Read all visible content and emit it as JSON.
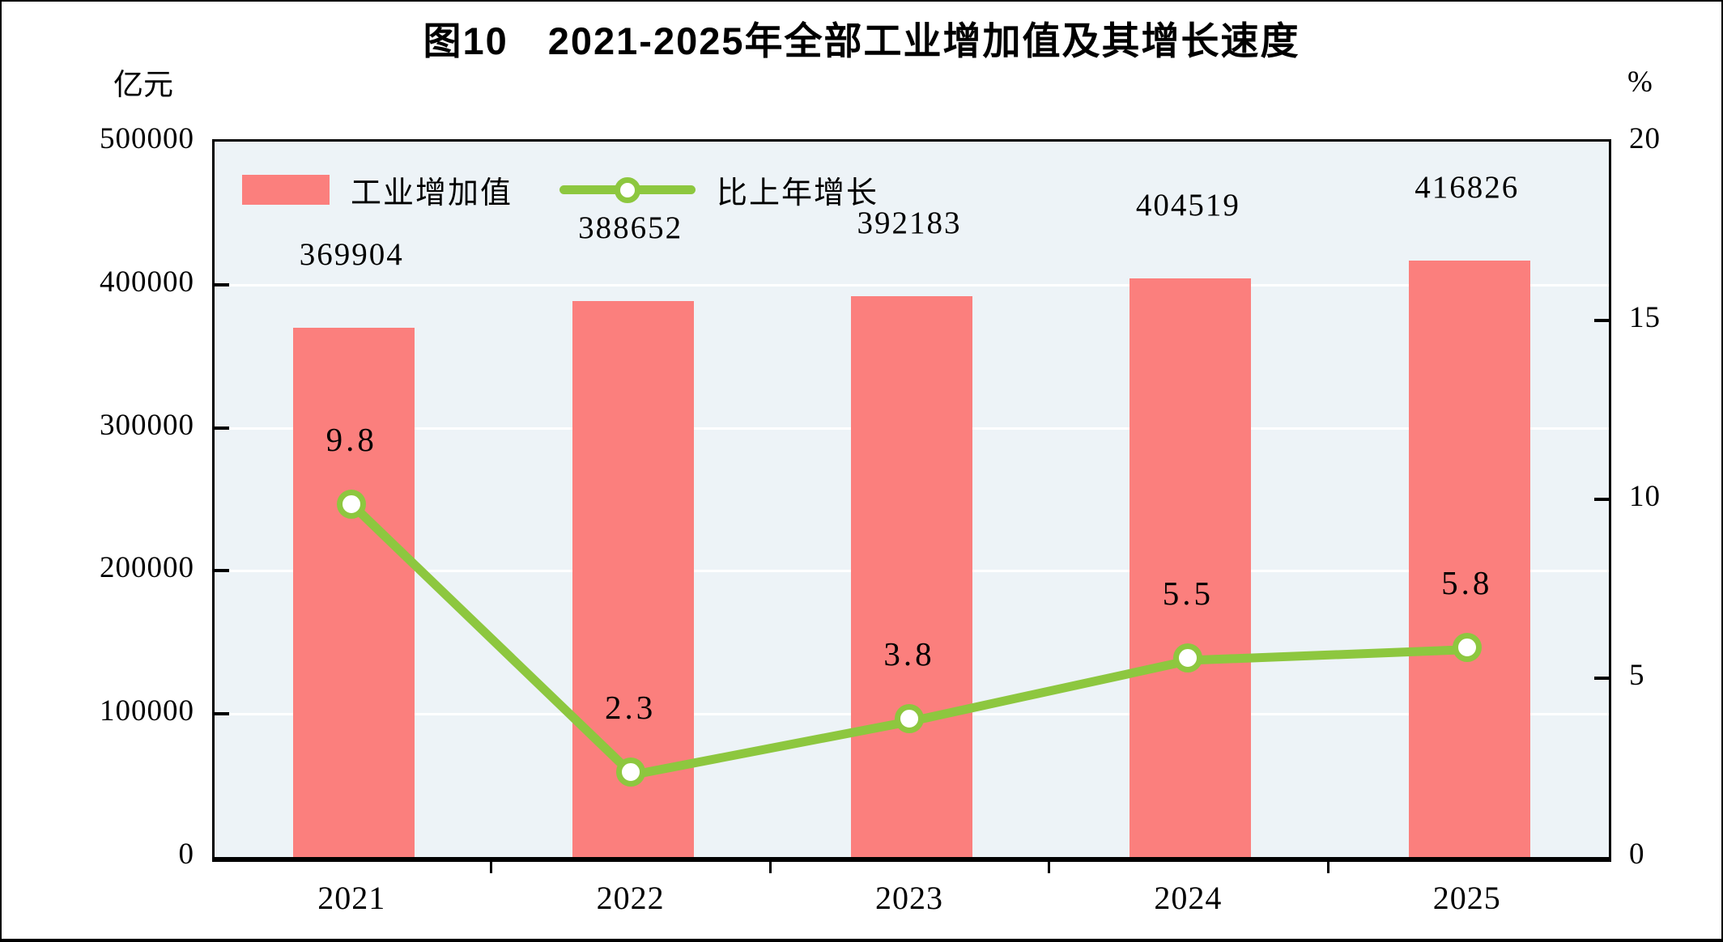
{
  "title": "图10　2021-2025年全部工业增加值及其增长速度",
  "colors": {
    "bar": "#FB7F7D",
    "line": "#8DC73F",
    "marker_fill": "#FFFFFF",
    "plot_background": "#EDF3F7",
    "gridline": "#FFFFFF",
    "axis": "#000000",
    "text": "#000000"
  },
  "legend": [
    {
      "label": "工业增加值",
      "swatch": "bar-swatch"
    },
    {
      "label": "比上年增长",
      "swatch": "line-marker-swatch"
    }
  ],
  "chart_data": {
    "type": "bar+line",
    "categories": [
      "2021",
      "2022",
      "2023",
      "2024",
      "2025"
    ],
    "series": [
      {
        "name": "工业增加值",
        "type": "bar",
        "axis": "left",
        "values": [
          369904,
          388652,
          392183,
          404519,
          416826
        ],
        "data_labels": [
          "369904",
          "388652",
          "392183",
          "404519",
          "416826"
        ]
      },
      {
        "name": "比上年增长",
        "type": "line",
        "axis": "right",
        "values": [
          9.8,
          2.3,
          3.8,
          5.5,
          5.8
        ],
        "data_labels": [
          "9.8",
          "2.3",
          "3.8",
          "5.5",
          "5.8"
        ]
      }
    ],
    "left_axis": {
      "label": "亿元",
      "min": 0,
      "max": 500000,
      "step": 100000,
      "ticks": [
        "0",
        "100000",
        "200000",
        "300000",
        "400000",
        "500000"
      ]
    },
    "right_axis": {
      "label": "%",
      "min": 0,
      "max": 20,
      "step": 5,
      "ticks": [
        "0",
        "5",
        "10",
        "15",
        "20"
      ]
    },
    "grid": true,
    "legend_position": "top-left-inside"
  }
}
